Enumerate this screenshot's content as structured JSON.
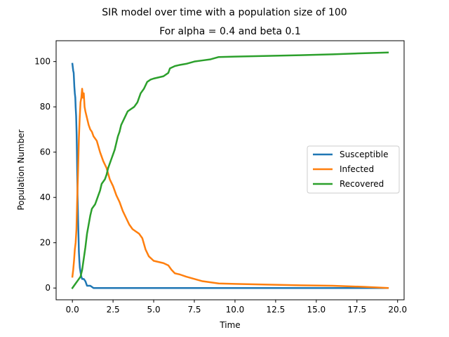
{
  "chart_data": {
    "type": "line",
    "suptitle": "SIR model over time with a population size of 100",
    "title": "For alpha = 0.4 and beta 0.1",
    "xlabel": "Time",
    "ylabel": "Population Number",
    "xlim": [
      -1.0,
      20.4
    ],
    "ylim": [
      -5.2,
      109.2
    ],
    "xticks": [
      0.0,
      2.5,
      5.0,
      7.5,
      10.0,
      12.5,
      15.0,
      17.5,
      20.0
    ],
    "xtick_labels": [
      "0.0",
      "2.5",
      "5.0",
      "7.5",
      "10.0",
      "12.5",
      "15.0",
      "17.5",
      "20.0"
    ],
    "yticks": [
      0,
      20,
      40,
      60,
      80,
      100
    ],
    "ytick_labels": [
      "0",
      "20",
      "40",
      "60",
      "80",
      "100"
    ],
    "grid": false,
    "legend_position": "center-right",
    "series": [
      {
        "name": "Susceptible",
        "color": "#1f77b4",
        "x": [
          0.0,
          0.05,
          0.08,
          0.12,
          0.15,
          0.18,
          0.2,
          0.23,
          0.26,
          0.28,
          0.3,
          0.32,
          0.35,
          0.38,
          0.4,
          0.43,
          0.46,
          0.5,
          0.55,
          0.6,
          0.7,
          0.8,
          0.9,
          1.0,
          1.1,
          1.3,
          1.5,
          3.0,
          6.0,
          10.0,
          15.0,
          19.4
        ],
        "y": [
          99,
          96,
          95,
          89,
          86,
          84,
          80,
          76,
          68,
          60,
          50,
          40,
          30,
          22,
          16,
          12,
          9,
          7,
          5,
          4,
          4,
          3,
          1,
          1,
          1,
          0,
          0,
          0,
          0,
          0,
          0,
          0
        ]
      },
      {
        "name": "Infected",
        "color": "#ff7f0e",
        "x": [
          0.0,
          0.05,
          0.1,
          0.15,
          0.2,
          0.25,
          0.3,
          0.35,
          0.4,
          0.45,
          0.5,
          0.55,
          0.6,
          0.65,
          0.7,
          0.75,
          0.8,
          0.9,
          1.0,
          1.1,
          1.2,
          1.3,
          1.5,
          1.7,
          1.9,
          2.1,
          2.3,
          2.5,
          2.7,
          2.9,
          3.1,
          3.3,
          3.5,
          3.7,
          3.9,
          4.1,
          4.3,
          4.5,
          4.7,
          5.0,
          5.3,
          5.6,
          5.9,
          6.1,
          6.3,
          6.6,
          7.0,
          7.5,
          8.0,
          8.5,
          9.0,
          10.0,
          12.0,
          14.0,
          16.0,
          18.0,
          19.4
        ],
        "y": [
          5,
          8,
          12,
          17,
          20,
          26,
          40,
          52,
          66,
          75,
          82,
          84,
          88,
          84,
          86,
          80,
          78,
          75,
          72,
          70,
          69,
          67,
          65,
          60,
          56,
          53,
          48,
          45,
          41,
          38,
          34,
          31,
          28,
          26,
          25,
          24,
          22,
          17,
          14,
          12,
          11.5,
          11,
          10,
          8,
          6.5,
          6,
          5,
          4,
          3,
          2.5,
          2,
          1.8,
          1.5,
          1.2,
          1,
          0.5,
          0
        ]
      },
      {
        "name": "Recovered",
        "color": "#2ca02c",
        "x": [
          0.0,
          0.1,
          0.2,
          0.3,
          0.4,
          0.5,
          0.6,
          0.7,
          0.8,
          0.9,
          1.0,
          1.1,
          1.2,
          1.3,
          1.4,
          1.5,
          1.6,
          1.7,
          1.8,
          1.9,
          2.0,
          2.1,
          2.2,
          2.3,
          2.4,
          2.5,
          2.6,
          2.7,
          2.8,
          2.9,
          3.0,
          3.2,
          3.4,
          3.6,
          3.8,
          4.0,
          4.2,
          4.4,
          4.6,
          4.8,
          5.0,
          5.3,
          5.6,
          5.9,
          6.0,
          6.3,
          6.6,
          7.0,
          7.5,
          8.0,
          8.5,
          9.0,
          10.0,
          12.0,
          14.0,
          16.0,
          18.0,
          19.4
        ],
        "y": [
          0,
          1,
          2,
          3,
          4,
          5,
          8,
          13,
          18,
          24,
          28,
          32,
          35,
          36,
          37,
          39,
          41,
          43,
          46,
          47,
          48,
          50,
          53,
          55,
          57,
          59,
          61,
          64,
          67,
          69,
          72,
          75,
          78,
          79,
          80,
          82,
          86,
          88,
          91,
          92,
          92.5,
          93,
          93.5,
          95,
          97,
          98,
          98.5,
          99,
          100,
          100.5,
          101,
          102,
          102.2,
          102.5,
          102.8,
          103.2,
          103.7,
          104
        ]
      }
    ]
  }
}
